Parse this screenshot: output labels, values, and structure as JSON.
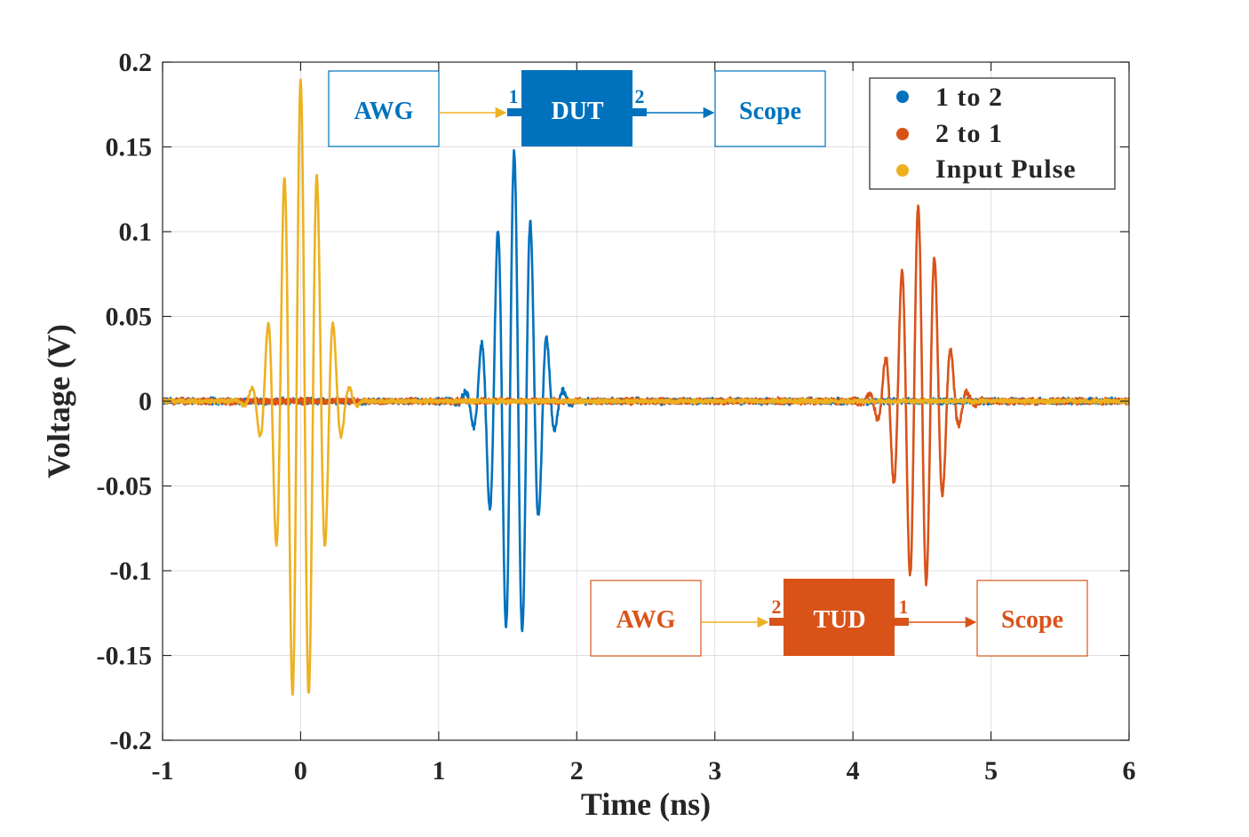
{
  "colors": {
    "series_1to2": "#0072BD",
    "series_2to1": "#D95319",
    "series_input": "#EDB120",
    "grid": "#dfdfdf",
    "axis": "#262626"
  },
  "chart_data": {
    "type": "line",
    "title": "",
    "xlabel": "Time (ns)",
    "ylabel": "Voltage (V)",
    "xlim": [
      -1,
      6
    ],
    "ylim": [
      -0.2,
      0.2
    ],
    "grid": true,
    "legend_position": "top-right",
    "xticks": [
      -1,
      0,
      1,
      2,
      3,
      4,
      5,
      6
    ],
    "xtick_labels": [
      "-1",
      "0",
      "1",
      "2",
      "3",
      "4",
      "5",
      "6"
    ],
    "yticks": [
      -0.2,
      -0.15,
      -0.1,
      -0.05,
      0,
      0.05,
      0.1,
      0.15,
      0.2
    ],
    "ytick_labels": [
      "-0.2",
      "-0.15",
      "-0.1",
      "-0.05",
      "0",
      "0.05",
      "0.1",
      "0.15",
      "0.2"
    ],
    "series": [
      {
        "name": "1 to 2",
        "color": "#0072BD",
        "center_ns": 1.55,
        "peak_amplitude_v": 0.147,
        "min_v": -0.135,
        "carrier_ghz": 8.4,
        "envelope_sigma_ns": 0.14,
        "phase_rad": 0.2,
        "noise_v": 0.003
      },
      {
        "name": "2 to 1",
        "color": "#D95319",
        "center_ns": 4.48,
        "peak_amplitude_v": 0.115,
        "min_v": -0.11,
        "carrier_ghz": 8.4,
        "envelope_sigma_ns": 0.14,
        "phase_rad": 0.4,
        "noise_v": 0.003
      },
      {
        "name": "Input Pulse",
        "color": "#EDB120",
        "center_ns": 0.0,
        "peak_amplitude_v": 0.189,
        "min_v": -0.176,
        "carrier_ghz": 8.4,
        "envelope_sigma_ns": 0.14,
        "phase_rad": 0.0,
        "noise_v": 0.002
      }
    ],
    "legend": [
      "1 to 2",
      "2 to 1",
      "Input Pulse"
    ]
  },
  "inset_top": {
    "source_label": "AWG",
    "device_label": "DUT",
    "port_in_label": "1",
    "port_out_label": "2",
    "sink_label": "Scope"
  },
  "inset_bottom": {
    "source_label": "AWG",
    "device_label": "TUD",
    "port_in_label": "2",
    "port_out_label": "1",
    "sink_label": "Scope"
  }
}
